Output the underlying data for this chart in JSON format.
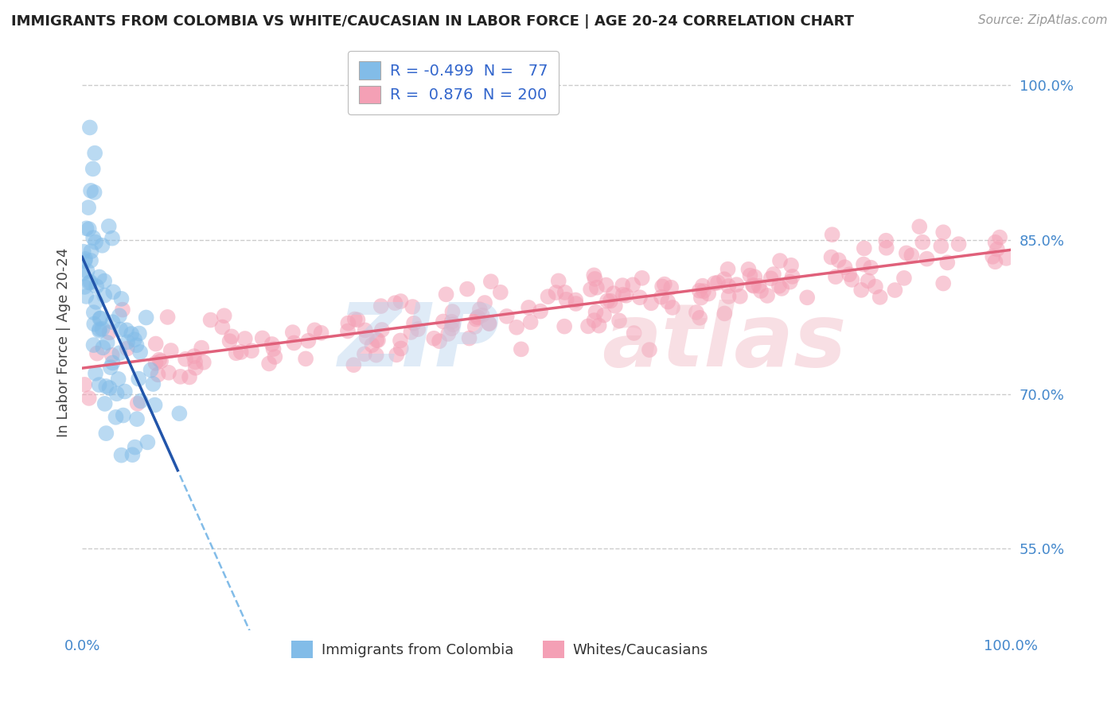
{
  "title": "IMMIGRANTS FROM COLOMBIA VS WHITE/CAUCASIAN IN LABOR FORCE | AGE 20-24 CORRELATION CHART",
  "source": "Source: ZipAtlas.com",
  "ylabel": "In Labor Force | Age 20-24",
  "xlim": [
    0.0,
    1.0
  ],
  "ylim": [
    0.47,
    1.03
  ],
  "yticks": [
    0.55,
    0.7,
    0.85,
    1.0
  ],
  "ytick_labels": [
    "55.0%",
    "70.0%",
    "85.0%",
    "100.0%"
  ],
  "blue_color": "#82bce8",
  "pink_color": "#f4a0b5",
  "blue_line_color": "#2255aa",
  "pink_line_color": "#e0607a",
  "dashed_line_color": "#82bce8",
  "legend_R_blue": "-0.499",
  "legend_N_blue": "77",
  "legend_R_pink": "0.876",
  "legend_N_pink": "200",
  "legend_label_blue": "Immigrants from Colombia",
  "legend_label_pink": "Whites/Caucasians",
  "background_color": "#ffffff",
  "grid_color": "#cccccc",
  "title_color": "#222222",
  "source_color": "#999999",
  "tick_color": "#4488cc",
  "blue_R": -0.499,
  "blue_N": 77,
  "pink_R": 0.876,
  "pink_N": 200,
  "blue_seed": 42,
  "pink_seed": 123
}
